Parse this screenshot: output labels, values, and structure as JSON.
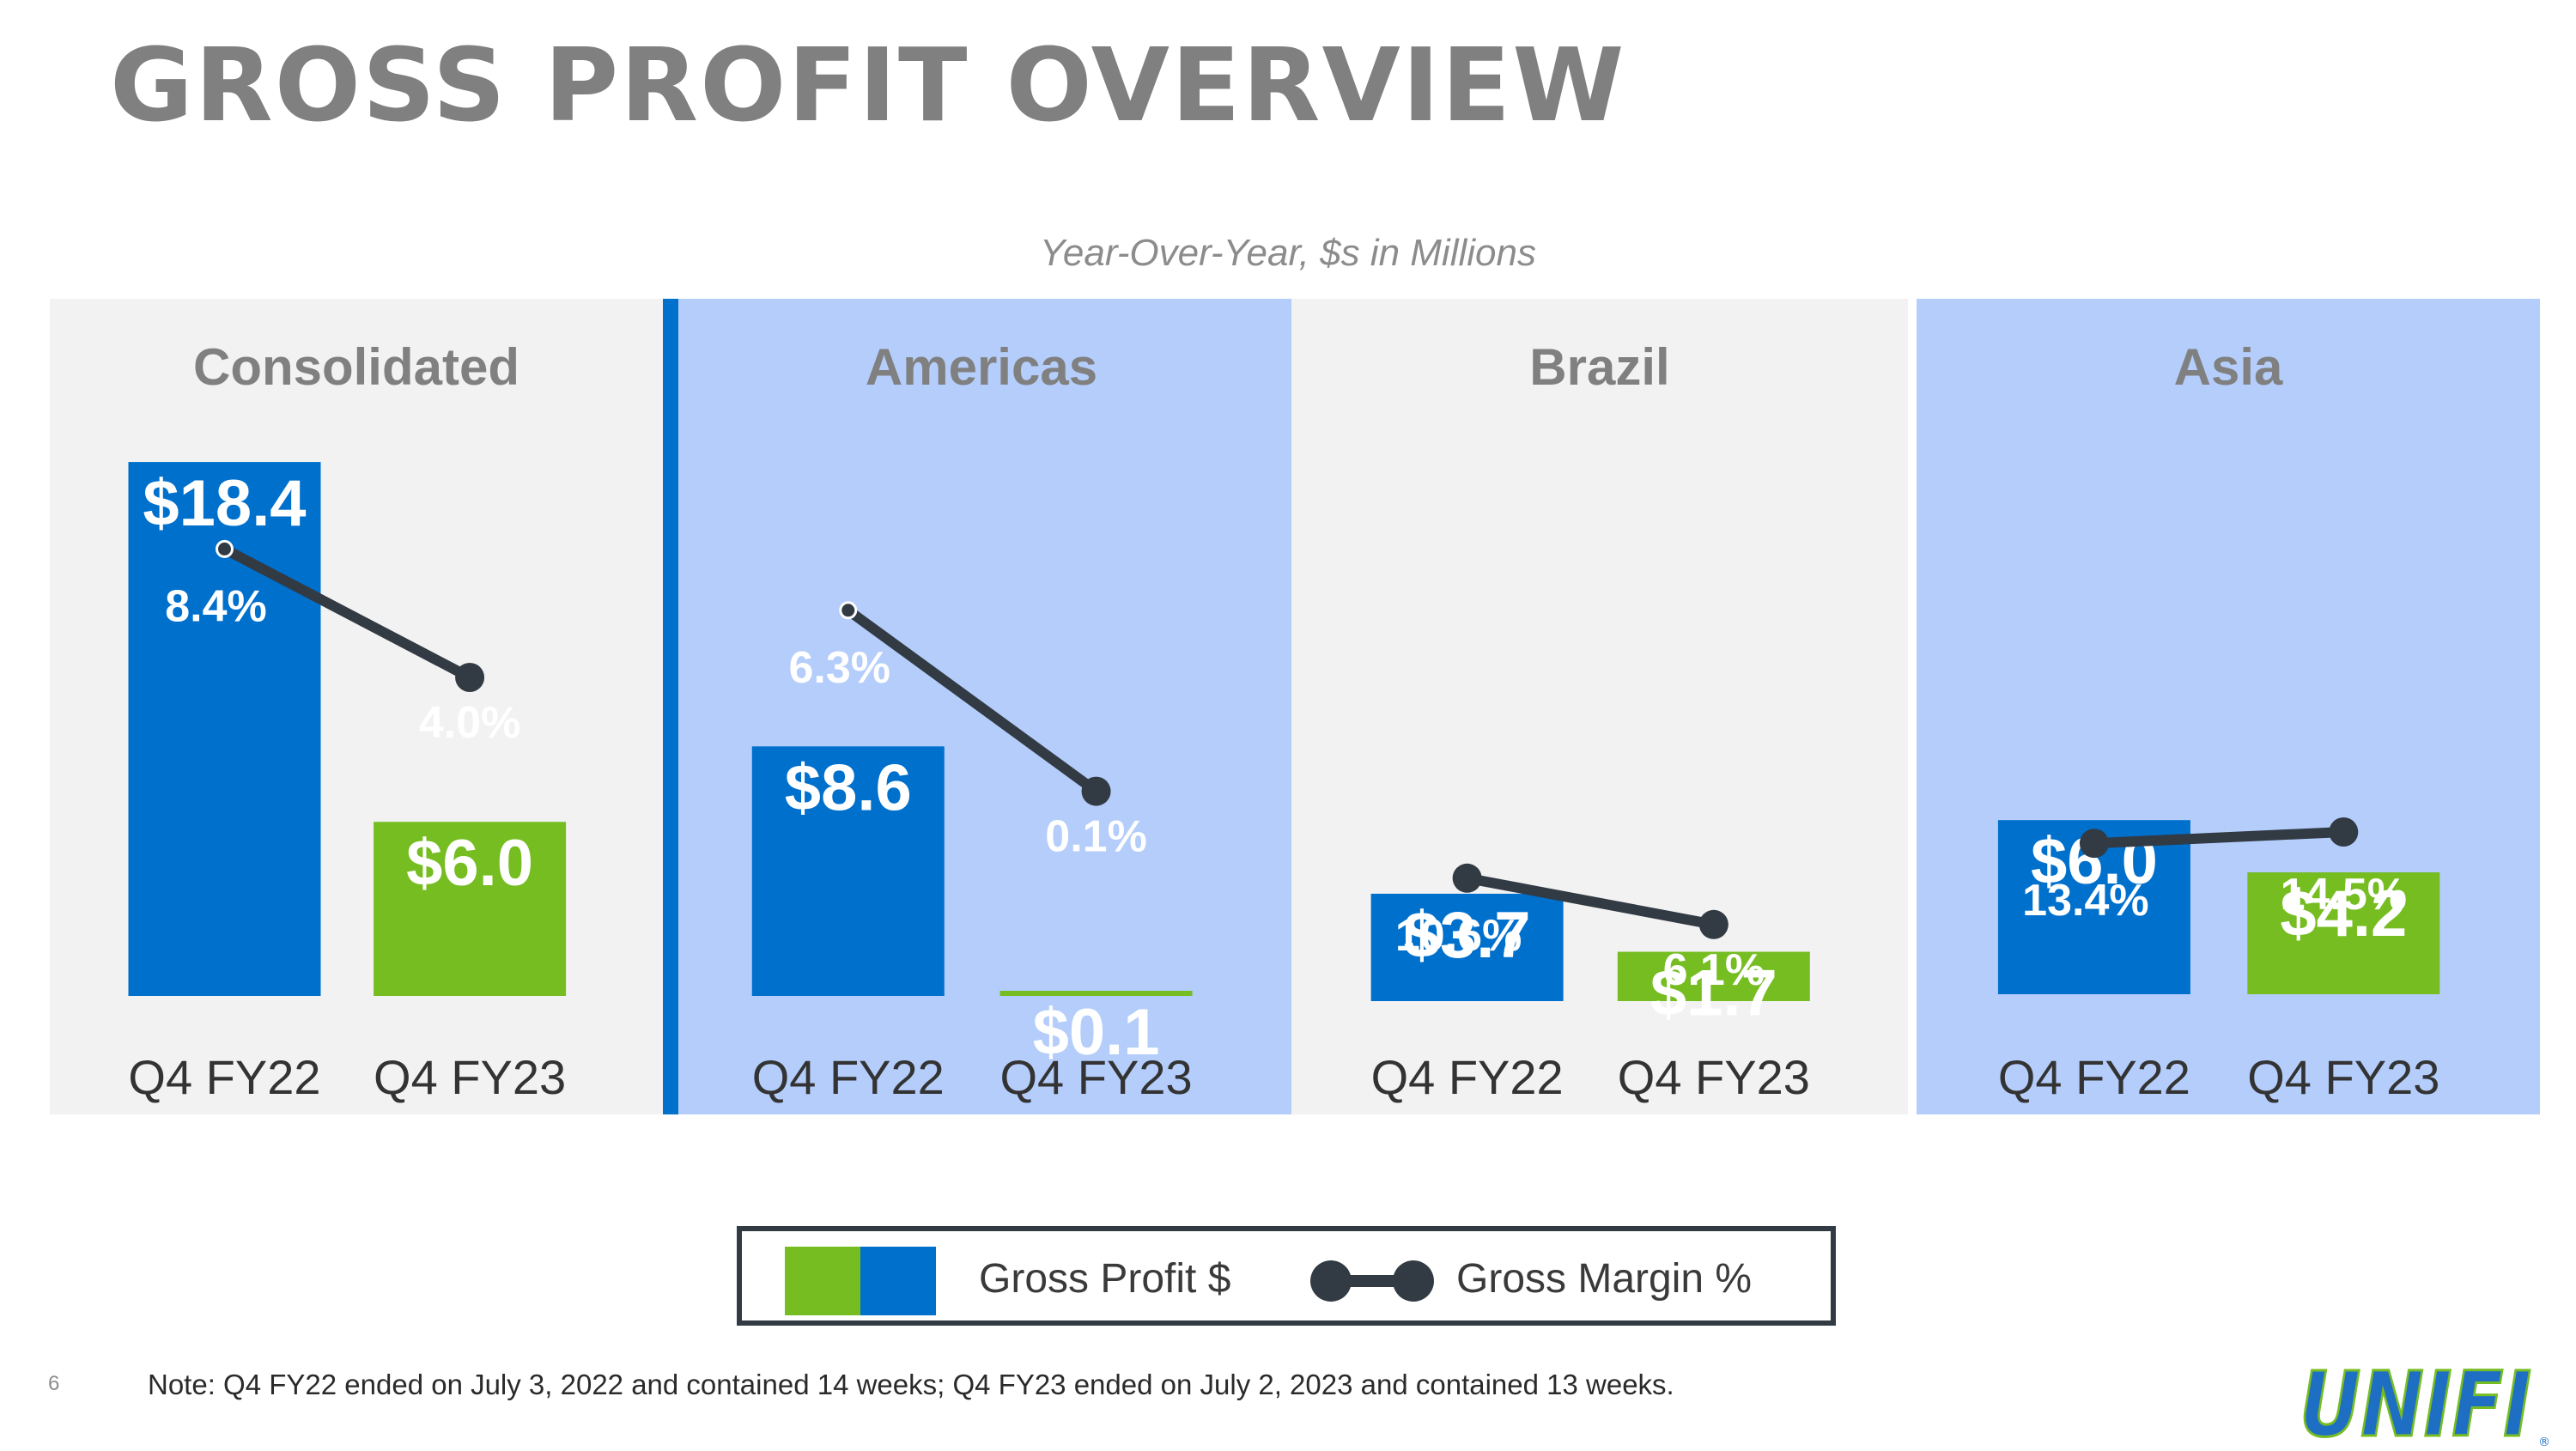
{
  "title": "GROSS PROFIT OVERVIEW",
  "subtitle": "Year-Over-Year, $s in Millions",
  "colors": {
    "fy22": "#0070cd",
    "fy23": "#76bd22",
    "line": "#323a43",
    "panel_light": "#f2f2f2",
    "panel_blue": "#b4cdfb",
    "title_gray": "#808080"
  },
  "chart_data": {
    "type": "bar",
    "combo_line": "gross margin %",
    "categories": [
      "Q4 FY22",
      "Q4 FY23"
    ],
    "panels": [
      {
        "name": "Consolidated",
        "values": [
          18.4,
          6.0
        ],
        "value_labels": [
          "$18.4",
          "$6.0"
        ],
        "margins": [
          8.4,
          4.0
        ],
        "margin_labels": [
          "8.4%",
          "4.0%"
        ]
      },
      {
        "name": "Americas",
        "values": [
          8.6,
          0.1
        ],
        "value_labels": [
          "$8.6",
          "$0.1"
        ],
        "margins": [
          6.3,
          0.1
        ],
        "margin_labels": [
          "6.3%",
          "0.1%"
        ]
      },
      {
        "name": "Brazil",
        "values": [
          3.7,
          1.7
        ],
        "value_labels": [
          "$3.7",
          "$1.7"
        ],
        "margins": [
          10.6,
          6.1
        ],
        "margin_labels": [
          "10.6%",
          "6.1%"
        ]
      },
      {
        "name": "Asia",
        "values": [
          6.0,
          4.2
        ],
        "value_labels": [
          "$6.0",
          "$4.2"
        ],
        "margins": [
          13.4,
          14.5
        ],
        "margin_labels": [
          "13.4%",
          "14.5%"
        ]
      }
    ],
    "legend": {
      "bar_label": "Gross Profit $",
      "line_label": "Gross Margin %",
      "placement": "bottom-center"
    }
  },
  "footer": {
    "page_number": "6",
    "note": "Note: Q4 FY22 ended on July 3, 2022 and contained 14 weeks; Q4 FY23 ended on July 2, 2023 and contained 13 weeks."
  },
  "logo": {
    "text": "UNIFI",
    "mark": "®",
    "icon": "unifi-logo-icon"
  }
}
